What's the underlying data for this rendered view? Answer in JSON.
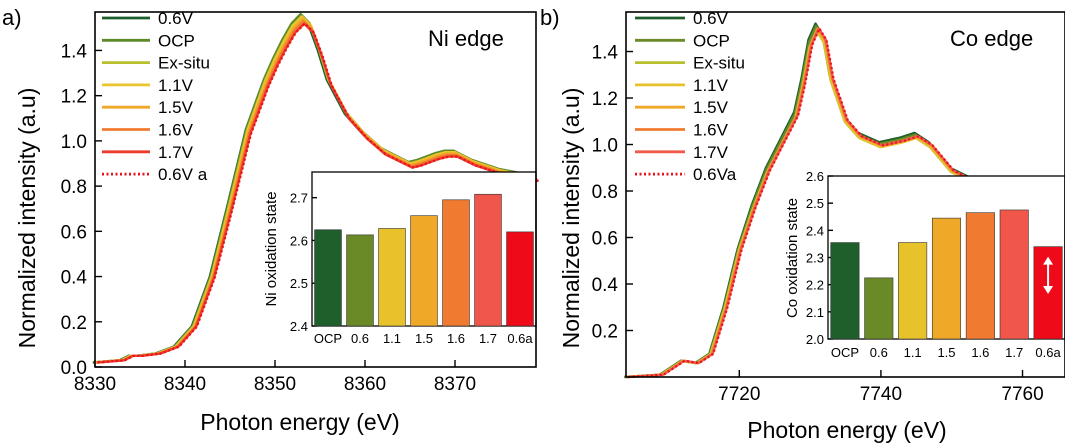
{
  "chart_data": [
    {
      "type": "line",
      "panel_label": "a)",
      "annotation": "Ni edge",
      "xlabel": "Photon energy (eV)",
      "ylabel": "Normalized intensity (a.u)",
      "xlim": [
        8330,
        8379
      ],
      "ylim": [
        0,
        1.57
      ],
      "xticks": [
        "8330",
        "8340",
        "8350",
        "8360",
        "8370"
      ],
      "yticks": [
        "0.0",
        "0.2",
        "0.4",
        "0.6",
        "0.8",
        "1.0",
        "1.2",
        "1.4"
      ],
      "legend_position": "top-left",
      "series": [
        {
          "name": "0.6V",
          "color": "#1e5f2c",
          "dash": false,
          "peak": 1.55
        },
        {
          "name": "OCP",
          "color": "#5f8a2a",
          "dash": false,
          "peak": 1.56
        },
        {
          "name": "Ex-situ",
          "color": "#b8c030",
          "dash": false,
          "peak": 1.55
        },
        {
          "name": "1.1V",
          "color": "#ecc42c",
          "dash": false,
          "peak": 1.55
        },
        {
          "name": "1.5V",
          "color": "#f0a828",
          "dash": false,
          "peak": 1.54
        },
        {
          "name": "1.6V",
          "color": "#f07a30",
          "dash": false,
          "peak": 1.53
        },
        {
          "name": "1.7V",
          "color": "#ee3a2c",
          "dash": false,
          "peak": 1.52
        },
        {
          "name": "0.6V a",
          "color": "#e8101a",
          "dash": true,
          "peak": 1.52
        }
      ],
      "curve_shape": {
        "x": [
          8330,
          8333,
          8334,
          8335,
          8337,
          8339,
          8341,
          8343,
          8345,
          8347,
          8349,
          8350,
          8351,
          8352,
          8353,
          8354,
          8355,
          8356,
          8358,
          8360,
          8362,
          8364,
          8365,
          8366,
          8368,
          8369,
          8370,
          8372,
          8375,
          8379
        ],
        "y": [
          0.02,
          0.03,
          0.05,
          0.05,
          0.06,
          0.09,
          0.18,
          0.4,
          0.72,
          1.05,
          1.27,
          1.36,
          1.44,
          1.51,
          1.55,
          1.51,
          1.4,
          1.27,
          1.12,
          1.03,
          0.96,
          0.92,
          0.9,
          0.91,
          0.94,
          0.95,
          0.95,
          0.91,
          0.87,
          0.84
        ]
      },
      "inset": {
        "type": "bar",
        "ylabel": "Ni oxidation state",
        "categories": [
          "OCP",
          "0.6",
          "1.1",
          "1.5",
          "1.6",
          "1.7",
          "0.6a"
        ],
        "values": [
          2.625,
          2.613,
          2.628,
          2.658,
          2.695,
          2.708,
          2.62
        ],
        "colors": [
          "#1e5f2c",
          "#6a8a28",
          "#e8c22a",
          "#f0a828",
          "#f07a30",
          "#f0574a",
          "#ef0a1a"
        ],
        "ylim": [
          2.4,
          2.76
        ],
        "yticks": [
          "2.4",
          "2.5",
          "2.6",
          "2.7"
        ]
      }
    },
    {
      "type": "line",
      "panel_label": "b)",
      "annotation": "Co edge",
      "xlabel": "Photon energy (eV)",
      "ylabel": "Normalized intensity (a.u)",
      "xlim": [
        7704,
        7766
      ],
      "ylim": [
        0,
        1.57
      ],
      "xticks": [
        "7720",
        "7740",
        "7760"
      ],
      "yticks": [
        "0.2",
        "0.4",
        "0.6",
        "0.8",
        "1.0",
        "1.2",
        "1.4"
      ],
      "legend_position": "top-left",
      "series": [
        {
          "name": "0.6V",
          "color": "#1e5f2c",
          "dash": false,
          "peak": 1.52
        },
        {
          "name": "OCP",
          "color": "#6a8a28",
          "dash": false,
          "peak": 1.51
        },
        {
          "name": "Ex-situ",
          "color": "#b8c030",
          "dash": false,
          "peak": 1.49
        },
        {
          "name": "1.1V",
          "color": "#e8c22a",
          "dash": false,
          "peak": 1.49
        },
        {
          "name": "1.5V",
          "color": "#f0a828",
          "dash": false,
          "peak": 1.5
        },
        {
          "name": "1.6V",
          "color": "#f07a30",
          "dash": false,
          "peak": 1.5
        },
        {
          "name": "1.7V",
          "color": "#f05a4a",
          "dash": false,
          "peak": 1.5
        },
        {
          "name": "0.6Va",
          "color": "#e8101a",
          "dash": true,
          "peak": 1.5
        }
      ],
      "curve_shape": {
        "x": [
          7704,
          7709,
          7711,
          7712,
          7714,
          7716,
          7718,
          7720,
          7722,
          7724,
          7726,
          7728,
          7729,
          7730,
          7731,
          7732,
          7733,
          7735,
          7737,
          7740,
          7743,
          7745,
          7747,
          7750,
          7754,
          7758,
          7762,
          7766
        ],
        "y": [
          0.0,
          0.01,
          0.05,
          0.07,
          0.06,
          0.1,
          0.3,
          0.55,
          0.74,
          0.9,
          1.02,
          1.14,
          1.28,
          1.45,
          1.52,
          1.47,
          1.3,
          1.12,
          1.05,
          1.01,
          1.03,
          1.05,
          1.01,
          0.9,
          0.84,
          0.79,
          0.76,
          0.75
        ]
      },
      "inset": {
        "type": "bar",
        "ylabel": "Co oxidation state",
        "categories": [
          "OCP",
          "0.6",
          "1.1",
          "1.5",
          "1.6",
          "1.7",
          "0.6a"
        ],
        "values": [
          2.355,
          2.225,
          2.355,
          2.445,
          2.465,
          2.475,
          2.34
        ],
        "colors": [
          "#1e5f2c",
          "#6a8a28",
          "#e8c22a",
          "#f0a828",
          "#f07a30",
          "#f0574a",
          "#ef0a1a"
        ],
        "ylim": [
          2.0,
          2.6
        ],
        "yticks": [
          "2.0",
          "2.1",
          "2.2",
          "2.3",
          "2.4",
          "2.5",
          "2.6"
        ],
        "arrow_on": "0.6a"
      }
    }
  ]
}
